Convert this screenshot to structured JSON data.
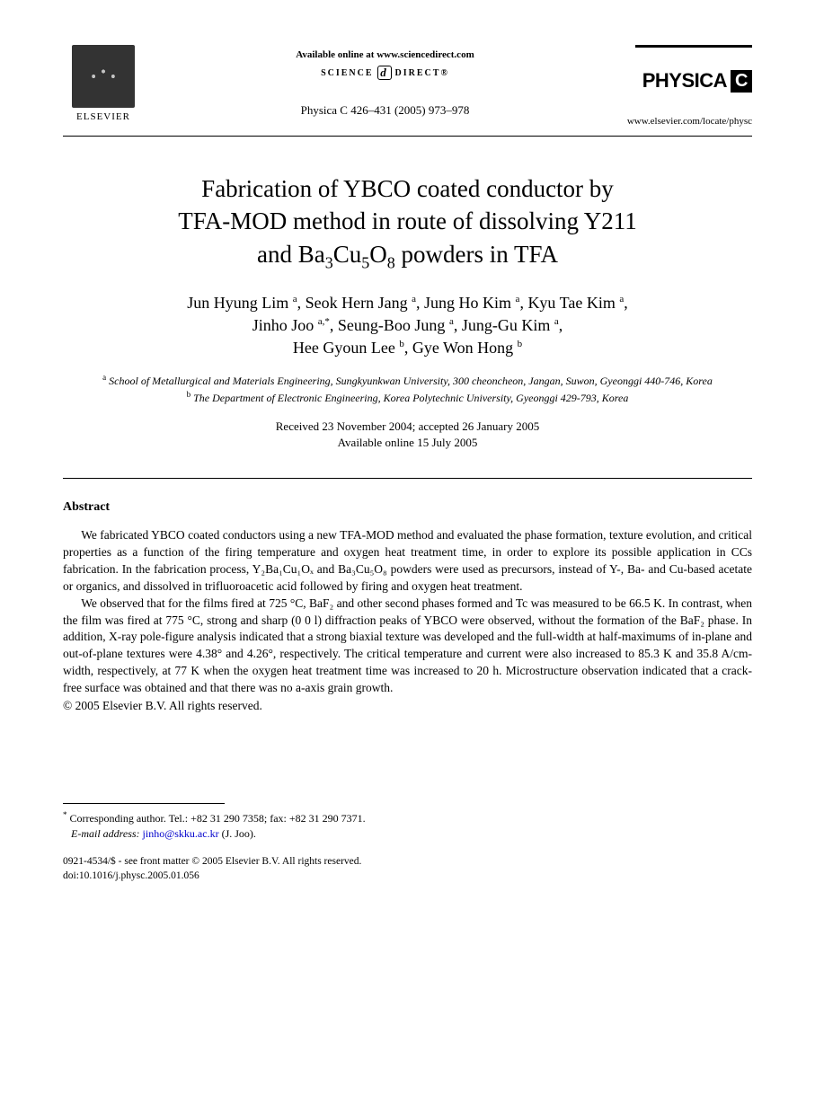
{
  "header": {
    "publisher_label": "ELSEVIER",
    "available_online": "Available online at www.sciencedirect.com",
    "science_direct_left": "SCIENCE",
    "science_direct_right": "DIRECT®",
    "citation": "Physica C 426–431 (2005) 973–978",
    "journal_name": "PHYSICA",
    "journal_letter": "C",
    "journal_url": "www.elsevier.com/locate/physc"
  },
  "title": {
    "line1": "Fabrication of YBCO coated conductor by",
    "line2": "TFA-MOD method in route of dissolving Y211",
    "line3_pre": "and Ba",
    "line3_sub1": "3",
    "line3_mid": "Cu",
    "line3_sub2": "5",
    "line3_mid2": "O",
    "line3_sub3": "8",
    "line3_post": " powders in TFA"
  },
  "authors": {
    "a1": "Jun Hyung Lim",
    "a1_aff": "a",
    "a2": "Seok Hern Jang",
    "a2_aff": "a",
    "a3": "Jung Ho Kim",
    "a3_aff": "a",
    "a4": "Kyu Tae Kim",
    "a4_aff": "a",
    "a5": "Jinho Joo",
    "a5_aff": "a,*",
    "a6": "Seung-Boo Jung",
    "a6_aff": "a",
    "a7": "Jung-Gu Kim",
    "a7_aff": "a",
    "a8": "Hee Gyoun Lee",
    "a8_aff": "b",
    "a9": "Gye Won Hong",
    "a9_aff": "b"
  },
  "affiliations": {
    "a_sup": "a",
    "a_text": " School of Metallurgical and Materials Engineering, Sungkyunkwan University, 300 cheoncheon, Jangan, Suwon, Gyeonggi 440-746, Korea",
    "b_sup": "b",
    "b_text": " The Department of Electronic Engineering, Korea Polytechnic University, Gyeonggi 429-793, Korea"
  },
  "dates": {
    "line1": "Received 23 November 2004; accepted 26 January 2005",
    "line2": "Available online 15 July 2005"
  },
  "abstract": {
    "heading": "Abstract",
    "p1": "We fabricated YBCO coated conductors using a new TFA-MOD method and evaluated the phase formation, texture evolution, and critical properties as a function of the firing temperature and oxygen heat treatment time, in order to explore its possible application in CCs fabrication. In the fabrication process, Y₂Ba₁Cu₁Oₓ and Ba₃Cu₅O₈ powders were used as precursors, instead of Y-, Ba- and Cu-based acetate or organics, and dissolved in trifluoroacetic acid followed by firing and oxygen heat treatment.",
    "p2": "We observed that for the films fired at 725 °C, BaF₂ and other second phases formed and Tc was measured to be 66.5 K. In contrast, when the film was fired at 775 °C, strong and sharp (0 0 l) diffraction peaks of YBCO were observed, without the formation of the BaF₂ phase. In addition, X-ray pole-figure analysis indicated that a strong biaxial texture was developed and the full-width at half-maximums of in-plane and out-of-plane textures were 4.38° and 4.26°, respectively. The critical temperature and current were also increased to 85.3 K and 35.8 A/cm-width, respectively, at 77 K when the oxygen heat treatment time was increased to 20 h. Microstructure observation indicated that a crack-free surface was obtained and that there was no a-axis grain growth.",
    "copyright": "© 2005 Elsevier B.V. All rights reserved."
  },
  "corresp": {
    "marker": "*",
    "text": " Corresponding author. Tel.: +82 31 290 7358; fax: +82 31 290 7371.",
    "email_label": "E-mail address:",
    "email": "jinho@skku.ac.kr",
    "email_person": " (J. Joo)."
  },
  "footer": {
    "line1": "0921-4534/$ - see front matter © 2005 Elsevier B.V. All rights reserved.",
    "line2": "doi:10.1016/j.physc.2005.01.056"
  }
}
